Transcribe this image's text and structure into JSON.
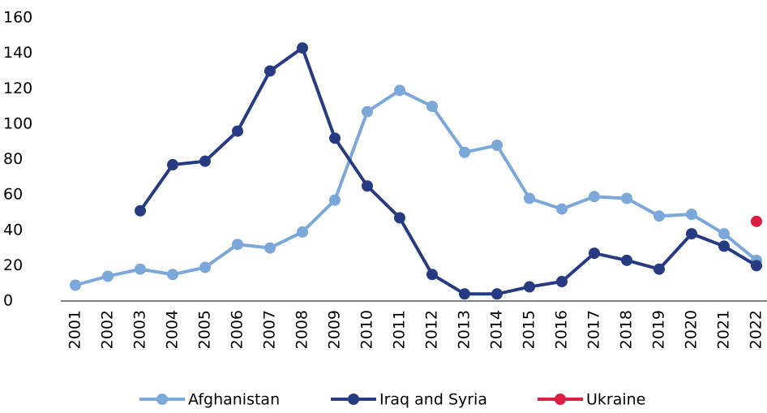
{
  "chart_data": {
    "type": "line",
    "categories": [
      "2001",
      "2002",
      "2003",
      "2004",
      "2005",
      "2006",
      "2007",
      "2008",
      "2009",
      "2010",
      "2011",
      "2012",
      "2013",
      "2014",
      "2015",
      "2016",
      "2017",
      "2018",
      "2019",
      "2020",
      "2021",
      "2022"
    ],
    "series": [
      {
        "name": "Afghanistan",
        "color": "#7ba7d9",
        "values": [
          9,
          14,
          18,
          15,
          19,
          32,
          30,
          39,
          57,
          107,
          119,
          110,
          84,
          88,
          58,
          52,
          59,
          58,
          48,
          49,
          38,
          23
        ]
      },
      {
        "name": "Iraq and Syria",
        "color": "#263b82",
        "values": [
          null,
          null,
          51,
          77,
          79,
          96,
          130,
          143,
          92,
          65,
          47,
          15,
          4,
          4,
          8,
          11,
          27,
          23,
          18,
          38,
          31,
          20
        ]
      },
      {
        "name": "Ukraine",
        "color": "#d81f42",
        "values": [
          null,
          null,
          null,
          null,
          null,
          null,
          null,
          null,
          null,
          null,
          null,
          null,
          null,
          null,
          null,
          null,
          null,
          null,
          null,
          null,
          null,
          45
        ]
      }
    ],
    "ylim": [
      0,
      160
    ],
    "yticks": [
      0,
      20,
      40,
      60,
      80,
      100,
      120,
      140,
      160
    ],
    "grid": false,
    "legend": "bottom"
  }
}
